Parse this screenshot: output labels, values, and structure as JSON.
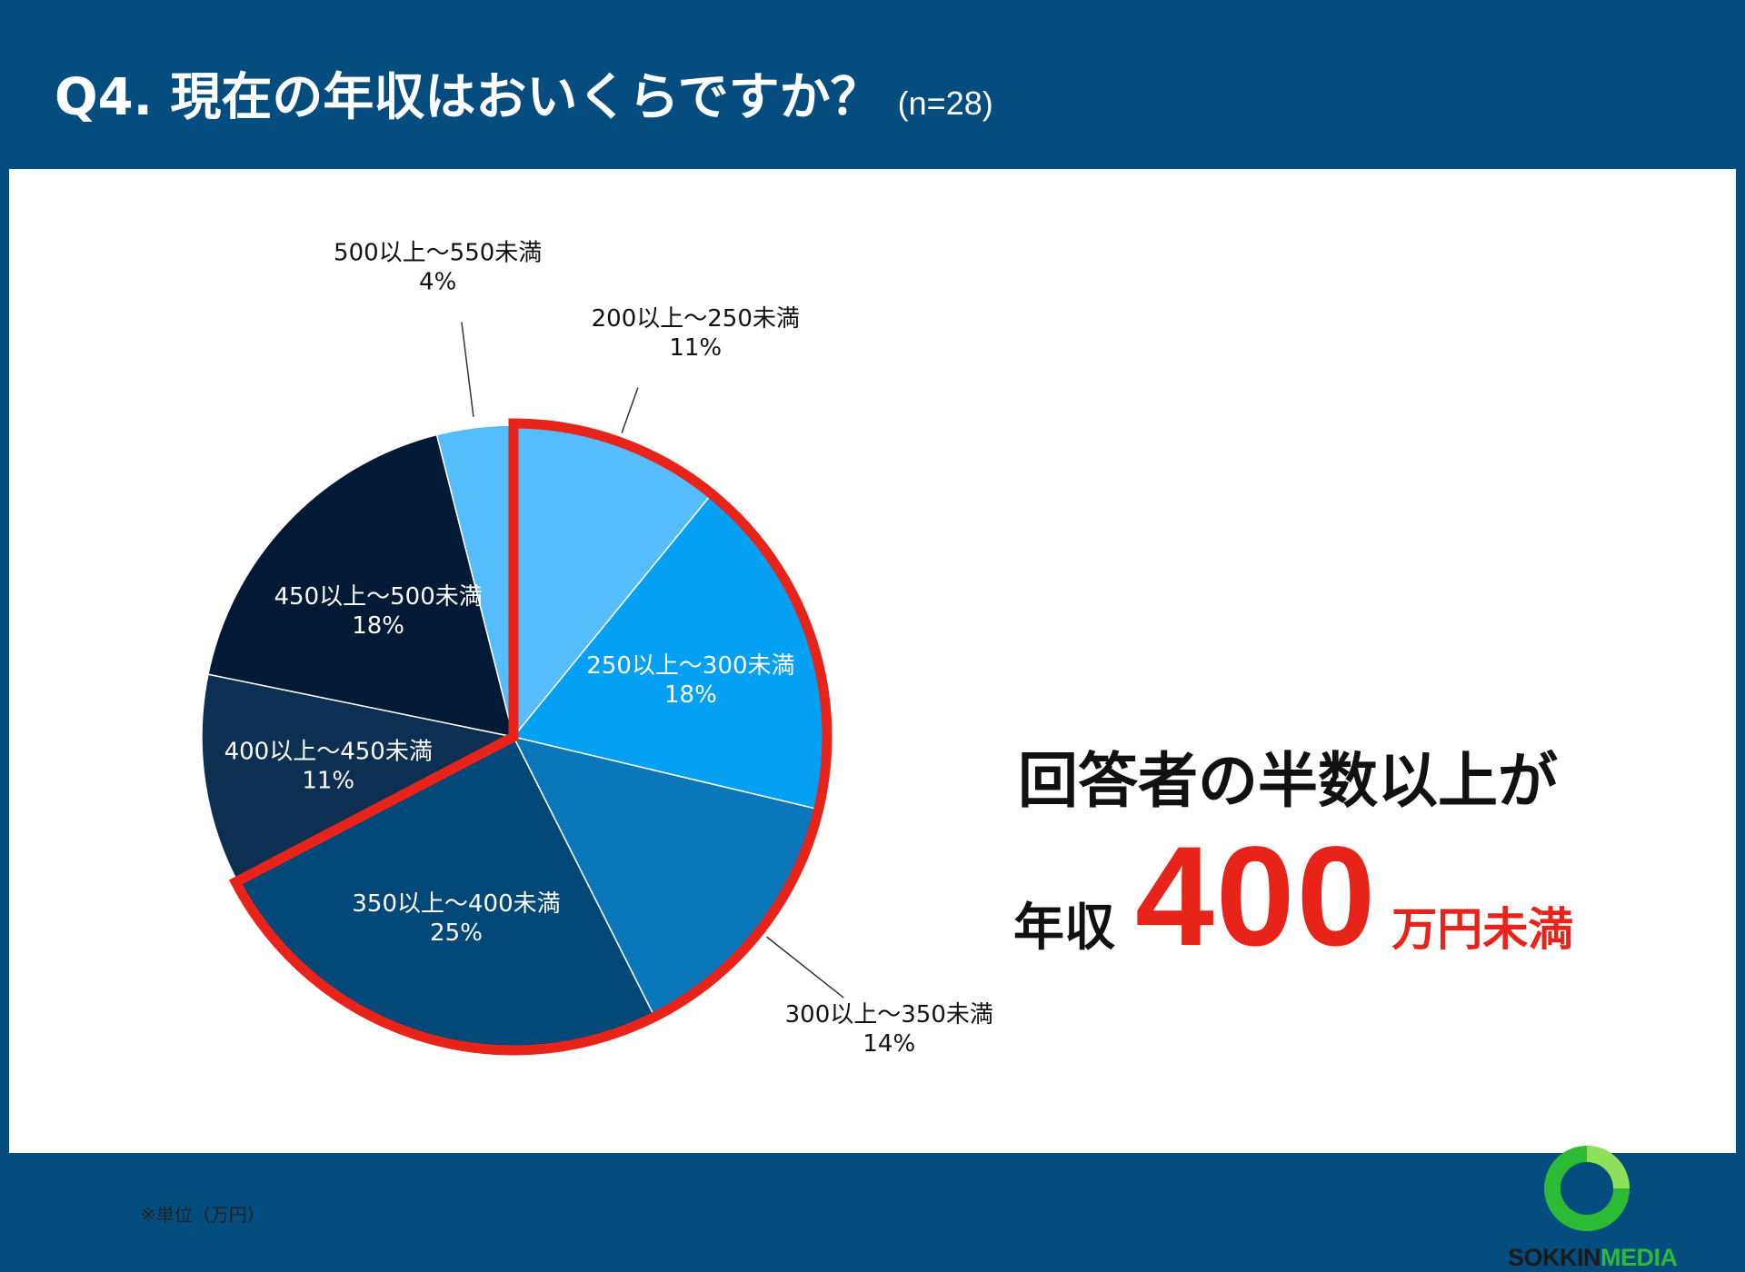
{
  "header": {
    "title": "Q4. 現在の年収はおいくらですか？",
    "sample_size": "(n=28)"
  },
  "chart_data": {
    "type": "pie",
    "start": "top, clockwise",
    "slices": [
      {
        "label": "200以上～250未満",
        "pct_label": "11%",
        "value": 11,
        "color": "#55bdfb",
        "label_style": "outside-top"
      },
      {
        "label": "250以上～300未満",
        "pct_label": "18%",
        "value": 18,
        "color": "#04a0f4",
        "label_style": "inside"
      },
      {
        "label": "300以上～350未満",
        "pct_label": "14%",
        "value": 14,
        "color": "#0a77ba",
        "label_style": "outside-bottom-right"
      },
      {
        "label": "350以上～400未満",
        "pct_label": "25%",
        "value": 25,
        "color": "#024878",
        "label_style": "inside"
      },
      {
        "label": "400以上～450未満",
        "pct_label": "11%",
        "value": 11,
        "color": "#0c2f52",
        "label_style": "inside"
      },
      {
        "label": "450以上～500未満",
        "pct_label": "18%",
        "value": 18,
        "color": "#031a36",
        "label_style": "inside"
      },
      {
        "label": "500以上～550未満",
        "pct_label": "4%",
        "value": 4,
        "color": "#55bdfb",
        "label_style": "outside-top"
      }
    ],
    "highlight": {
      "slices": [
        0,
        1,
        2,
        3
      ],
      "color": "#e8241a"
    }
  },
  "callout": {
    "line1": "回答者の半数以上が",
    "prefix": "年収",
    "value": "400",
    "suffix": "万円未満"
  },
  "note": "※単位（万円）",
  "logo": {
    "part1": "SOKKIN",
    "part2": "MEDIA",
    "ring_color": "#2dbb36"
  }
}
